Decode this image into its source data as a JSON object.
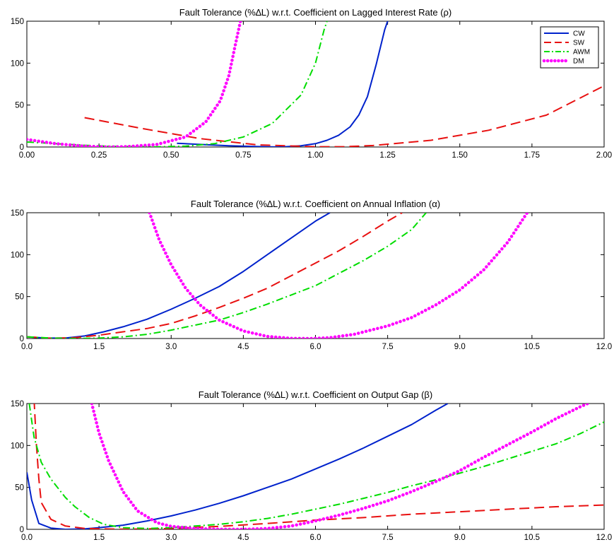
{
  "chart_data": [
    {
      "type": "line",
      "title": "Fault Tolerance (%∆L) w.r.t. Coefficient on Lagged Interest Rate (ρ)",
      "xlabel": "",
      "ylabel": "",
      "xlim": [
        0,
        2
      ],
      "ylim": [
        0,
        150
      ],
      "xticks": [
        "0.00",
        "0.25",
        "0.50",
        "0.75",
        "1.00",
        "1.25",
        "1.50",
        "1.75",
        "2.00"
      ],
      "xtick_values": [
        0,
        0.25,
        0.5,
        0.75,
        1,
        1.25,
        1.5,
        1.75,
        2
      ],
      "yticks": [
        "0",
        "50",
        "100",
        "150"
      ],
      "ytick_values": [
        0,
        50,
        100,
        150
      ],
      "legend": "top-right",
      "grid": false,
      "series": [
        {
          "name": "CW",
          "color": "#0022cc",
          "style": "solid",
          "points": [
            [
              0.52,
              4.5
            ],
            [
              0.6,
              3
            ],
            [
              0.7,
              1.5
            ],
            [
              0.8,
              0.5
            ],
            [
              0.88,
              0
            ],
            [
              0.95,
              1.5
            ],
            [
              1.0,
              4
            ],
            [
              1.04,
              8
            ],
            [
              1.08,
              14
            ],
            [
              1.12,
              24
            ],
            [
              1.15,
              38
            ],
            [
              1.18,
              60
            ],
            [
              1.21,
              98
            ],
            [
              1.24,
              140
            ],
            [
              1.26,
              160
            ]
          ]
        },
        {
          "name": "SW",
          "color": "#e81010",
          "style": "dashed",
          "points": [
            [
              0.2,
              35
            ],
            [
              0.4,
              22
            ],
            [
              0.6,
              10
            ],
            [
              0.8,
              2.5
            ],
            [
              1.0,
              0.3
            ],
            [
              1.1,
              0.3
            ],
            [
              1.2,
              1.8
            ],
            [
              1.4,
              8
            ],
            [
              1.6,
              20
            ],
            [
              1.8,
              38
            ],
            [
              2.0,
              73
            ]
          ]
        },
        {
          "name": "AWM",
          "color": "#00dd00",
          "style": "dashdot",
          "points": [
            [
              0.0,
              6
            ],
            [
              0.2,
              2
            ],
            [
              0.3,
              0.8
            ],
            [
              0.45,
              0.2
            ],
            [
              0.55,
              1
            ],
            [
              0.65,
              4
            ],
            [
              0.75,
              12
            ],
            [
              0.85,
              28
            ],
            [
              0.95,
              62
            ],
            [
              1.0,
              100
            ],
            [
              1.03,
              140
            ],
            [
              1.05,
              160
            ]
          ]
        },
        {
          "name": "DM",
          "color": "#ff00ff",
          "style": "dotted",
          "points": [
            [
              0.0,
              9
            ],
            [
              0.1,
              4
            ],
            [
              0.2,
              1
            ],
            [
              0.28,
              0
            ],
            [
              0.35,
              0.5
            ],
            [
              0.45,
              3
            ],
            [
              0.55,
              12
            ],
            [
              0.62,
              30
            ],
            [
              0.67,
              55
            ],
            [
              0.7,
              85
            ],
            [
              0.72,
              118
            ],
            [
              0.74,
              150
            ]
          ]
        }
      ]
    },
    {
      "type": "line",
      "title": "Fault Tolerance (%∆L) w.r.t. Coefficient on Annual Inflation (α)",
      "xlabel": "",
      "ylabel": "",
      "xlim": [
        0,
        12
      ],
      "ylim": [
        0,
        150
      ],
      "xticks": [
        "0.0",
        "1.5",
        "3.0",
        "4.5",
        "6.0",
        "7.5",
        "9.0",
        "10.5",
        "12.0"
      ],
      "xtick_values": [
        0,
        1.5,
        3,
        4.5,
        6,
        7.5,
        9,
        10.5,
        12
      ],
      "yticks": [
        "0",
        "50",
        "100",
        "150"
      ],
      "ytick_values": [
        0,
        50,
        100,
        150
      ],
      "grid": false,
      "series": [
        {
          "name": "CW",
          "color": "#0022cc",
          "style": "solid",
          "points": [
            [
              0.0,
              2
            ],
            [
              0.4,
              0.5
            ],
            [
              0.8,
              0.5
            ],
            [
              1.2,
              3
            ],
            [
              1.6,
              8
            ],
            [
              2.0,
              14
            ],
            [
              2.5,
              23
            ],
            [
              3.0,
              35
            ],
            [
              3.5,
              48
            ],
            [
              4.0,
              62
            ],
            [
              4.5,
              80
            ],
            [
              5.0,
              100
            ],
            [
              5.5,
              120
            ],
            [
              6.0,
              140
            ],
            [
              6.3,
              150
            ]
          ]
        },
        {
          "name": "SW",
          "color": "#e81010",
          "style": "dashed",
          "points": [
            [
              0.0,
              2
            ],
            [
              0.5,
              0.3
            ],
            [
              1.0,
              1
            ],
            [
              1.5,
              4
            ],
            [
              2.0,
              8
            ],
            [
              2.5,
              12
            ],
            [
              3.0,
              18
            ],
            [
              3.5,
              27
            ],
            [
              4.0,
              37
            ],
            [
              4.5,
              48
            ],
            [
              5.0,
              60
            ],
            [
              5.5,
              75
            ],
            [
              6.0,
              90
            ],
            [
              6.5,
              105
            ],
            [
              7.0,
              122
            ],
            [
              7.5,
              140
            ],
            [
              7.8,
              150
            ]
          ]
        },
        {
          "name": "AWM",
          "color": "#00dd00",
          "style": "dashdot",
          "points": [
            [
              0.0,
              2
            ],
            [
              0.5,
              0.5
            ],
            [
              1.0,
              0
            ],
            [
              1.5,
              0.5
            ],
            [
              2.0,
              2
            ],
            [
              2.5,
              5
            ],
            [
              3.0,
              10
            ],
            [
              3.5,
              16
            ],
            [
              4.0,
              22
            ],
            [
              4.5,
              31
            ],
            [
              5.0,
              41
            ],
            [
              5.5,
              52
            ],
            [
              6.0,
              63
            ],
            [
              6.5,
              78
            ],
            [
              7.0,
              93
            ],
            [
              7.5,
              110
            ],
            [
              8.0,
              130
            ],
            [
              8.3,
              150
            ]
          ]
        },
        {
          "name": "DM",
          "color": "#ff00ff",
          "style": "dotted",
          "points": [
            [
              2.55,
              150
            ],
            [
              2.75,
              118
            ],
            [
              3.0,
              88
            ],
            [
              3.3,
              60
            ],
            [
              3.6,
              40
            ],
            [
              4.0,
              22
            ],
            [
              4.5,
              9
            ],
            [
              5.0,
              2.5
            ],
            [
              5.5,
              0.2
            ],
            [
              5.9,
              0
            ],
            [
              6.3,
              1
            ],
            [
              6.8,
              5
            ],
            [
              7.5,
              15
            ],
            [
              8.0,
              25
            ],
            [
              8.5,
              40
            ],
            [
              9.0,
              58
            ],
            [
              9.5,
              82
            ],
            [
              10.0,
              115
            ],
            [
              10.4,
              150
            ]
          ]
        }
      ]
    },
    {
      "type": "line",
      "title": "Fault Tolerance (%∆L) w.r.t. Coefficient on Output Gap (β)",
      "xlabel": "",
      "ylabel": "",
      "xlim": [
        0,
        12
      ],
      "ylim": [
        0,
        150
      ],
      "xticks": [
        "0.0",
        "1.5",
        "3.0",
        "4.5",
        "6.0",
        "7.5",
        "9.0",
        "10.5",
        "12.0"
      ],
      "xtick_values": [
        0,
        1.5,
        3,
        4.5,
        6,
        7.5,
        9,
        10.5,
        12
      ],
      "yticks": [
        "0",
        "50",
        "100",
        "150"
      ],
      "ytick_values": [
        0,
        50,
        100,
        150
      ],
      "grid": false,
      "series": [
        {
          "name": "CW",
          "color": "#0022cc",
          "style": "solid",
          "points": [
            [
              0.0,
              68
            ],
            [
              0.1,
              35
            ],
            [
              0.25,
              7
            ],
            [
              0.5,
              1.5
            ],
            [
              0.8,
              0
            ],
            [
              1.2,
              0.5
            ],
            [
              1.5,
              2
            ],
            [
              2.0,
              5
            ],
            [
              2.5,
              10
            ],
            [
              3.0,
              16
            ],
            [
              3.5,
              23
            ],
            [
              4.0,
              31
            ],
            [
              4.5,
              40
            ],
            [
              5.0,
              50
            ],
            [
              5.5,
              60
            ],
            [
              6.0,
              72
            ],
            [
              6.5,
              84
            ],
            [
              7.0,
              97
            ],
            [
              7.5,
              111
            ],
            [
              8.0,
              125
            ],
            [
              8.5,
              142
            ],
            [
              8.75,
              150
            ]
          ]
        },
        {
          "name": "SW",
          "color": "#e81010",
          "style": "dashed",
          "points": [
            [
              0.15,
              155
            ],
            [
              0.2,
              100
            ],
            [
              0.25,
              60
            ],
            [
              0.3,
              32
            ],
            [
              0.5,
              12
            ],
            [
              0.8,
              4
            ],
            [
              1.2,
              1
            ],
            [
              2.0,
              0.2
            ],
            [
              3.0,
              1
            ],
            [
              4.0,
              3.5
            ],
            [
              5.0,
              7
            ],
            [
              6.0,
              11
            ],
            [
              7.0,
              14
            ],
            [
              8.0,
              18
            ],
            [
              9.0,
              21
            ],
            [
              10.0,
              24
            ],
            [
              11.0,
              27
            ],
            [
              12.0,
              29
            ]
          ]
        },
        {
          "name": "AWM",
          "color": "#00dd00",
          "style": "dashdot",
          "points": [
            [
              0.05,
              150
            ],
            [
              0.15,
              110
            ],
            [
              0.3,
              80
            ],
            [
              0.5,
              60
            ],
            [
              0.8,
              38
            ],
            [
              1.0,
              27
            ],
            [
              1.3,
              14
            ],
            [
              1.6,
              6
            ],
            [
              2.0,
              2
            ],
            [
              2.5,
              1
            ],
            [
              3.0,
              2
            ],
            [
              3.5,
              4
            ],
            [
              4.0,
              6
            ],
            [
              4.5,
              9
            ],
            [
              5.0,
              13
            ],
            [
              5.5,
              18
            ],
            [
              6.0,
              24
            ],
            [
              6.5,
              30
            ],
            [
              7.0,
              37
            ],
            [
              7.5,
              44
            ],
            [
              8.0,
              52
            ],
            [
              8.5,
              59
            ],
            [
              9.0,
              67
            ],
            [
              9.5,
              75
            ],
            [
              10.0,
              84
            ],
            [
              10.5,
              93
            ],
            [
              11.0,
              102
            ],
            [
              11.5,
              114
            ],
            [
              12.0,
              128
            ]
          ]
        },
        {
          "name": "DM",
          "color": "#ff00ff",
          "style": "dotted",
          "points": [
            [
              1.35,
              150
            ],
            [
              1.5,
              115
            ],
            [
              1.7,
              82
            ],
            [
              2.0,
              45
            ],
            [
              2.3,
              22
            ],
            [
              2.7,
              8
            ],
            [
              3.0,
              3.5
            ],
            [
              3.5,
              1
            ],
            [
              4.0,
              0.2
            ],
            [
              4.5,
              0
            ],
            [
              5.0,
              1
            ],
            [
              5.5,
              4
            ],
            [
              6.0,
              10
            ],
            [
              6.5,
              17
            ],
            [
              7.0,
              25
            ],
            [
              7.5,
              34
            ],
            [
              8.0,
              45
            ],
            [
              8.5,
              57
            ],
            [
              9.0,
              70
            ],
            [
              9.5,
              86
            ],
            [
              10.0,
              101
            ],
            [
              10.5,
              116
            ],
            [
              11.0,
              132
            ],
            [
              11.5,
              146
            ],
            [
              11.7,
              151
            ]
          ]
        }
      ]
    }
  ]
}
